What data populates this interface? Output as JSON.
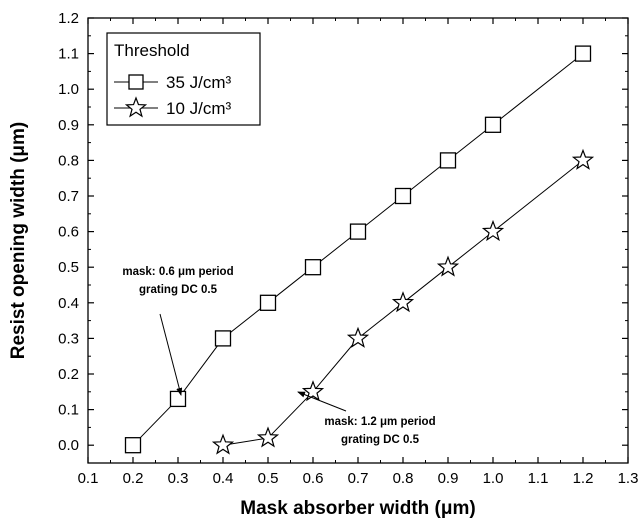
{
  "chart_data": {
    "type": "line",
    "xlabel": "Mask absorber width (μm)",
    "ylabel": "Resist opening width (μm)",
    "xlim": [
      0.1,
      1.3
    ],
    "ylim": [
      -0.05,
      1.2
    ],
    "xticks": [
      "0.1",
      "0.2",
      "0.3",
      "0.4",
      "0.5",
      "0.6",
      "0.7",
      "0.8",
      "0.9",
      "1.0",
      "1.1",
      "1.2",
      "1.3"
    ],
    "yticks": [
      "0.0",
      "0.1",
      "0.2",
      "0.3",
      "0.4",
      "0.5",
      "0.6",
      "0.7",
      "0.8",
      "0.9",
      "1.0",
      "1.1",
      "1.2"
    ],
    "grid": false,
    "legend": {
      "title": "Threshold",
      "placement": "top-left",
      "entries": [
        "35 J/cm³",
        "10 J/cm³"
      ]
    },
    "series": [
      {
        "name": "35 J/cm³",
        "marker": "square",
        "x": [
          0.2,
          0.3,
          0.4,
          0.5,
          0.6,
          0.7,
          0.8,
          0.9,
          1.0,
          1.2
        ],
        "y": [
          0.0,
          0.13,
          0.3,
          0.4,
          0.5,
          0.6,
          0.7,
          0.8,
          0.9,
          1.1
        ]
      },
      {
        "name": "10 J/cm³",
        "marker": "star",
        "x": [
          0.4,
          0.5,
          0.6,
          0.7,
          0.8,
          0.9,
          1.0,
          1.2
        ],
        "y": [
          0.0,
          0.02,
          0.15,
          0.3,
          0.4,
          0.5,
          0.6,
          0.8
        ]
      }
    ],
    "annotations": [
      {
        "lines": [
          "mask: 0.6 μm period",
          "grating DC 0.5"
        ],
        "points_to": {
          "x": 0.3,
          "y": 0.13
        }
      },
      {
        "lines": [
          "mask: 1.2 μm period",
          "grating DC 0.5"
        ],
        "points_to": {
          "x": 0.6,
          "y": 0.15
        }
      }
    ]
  }
}
